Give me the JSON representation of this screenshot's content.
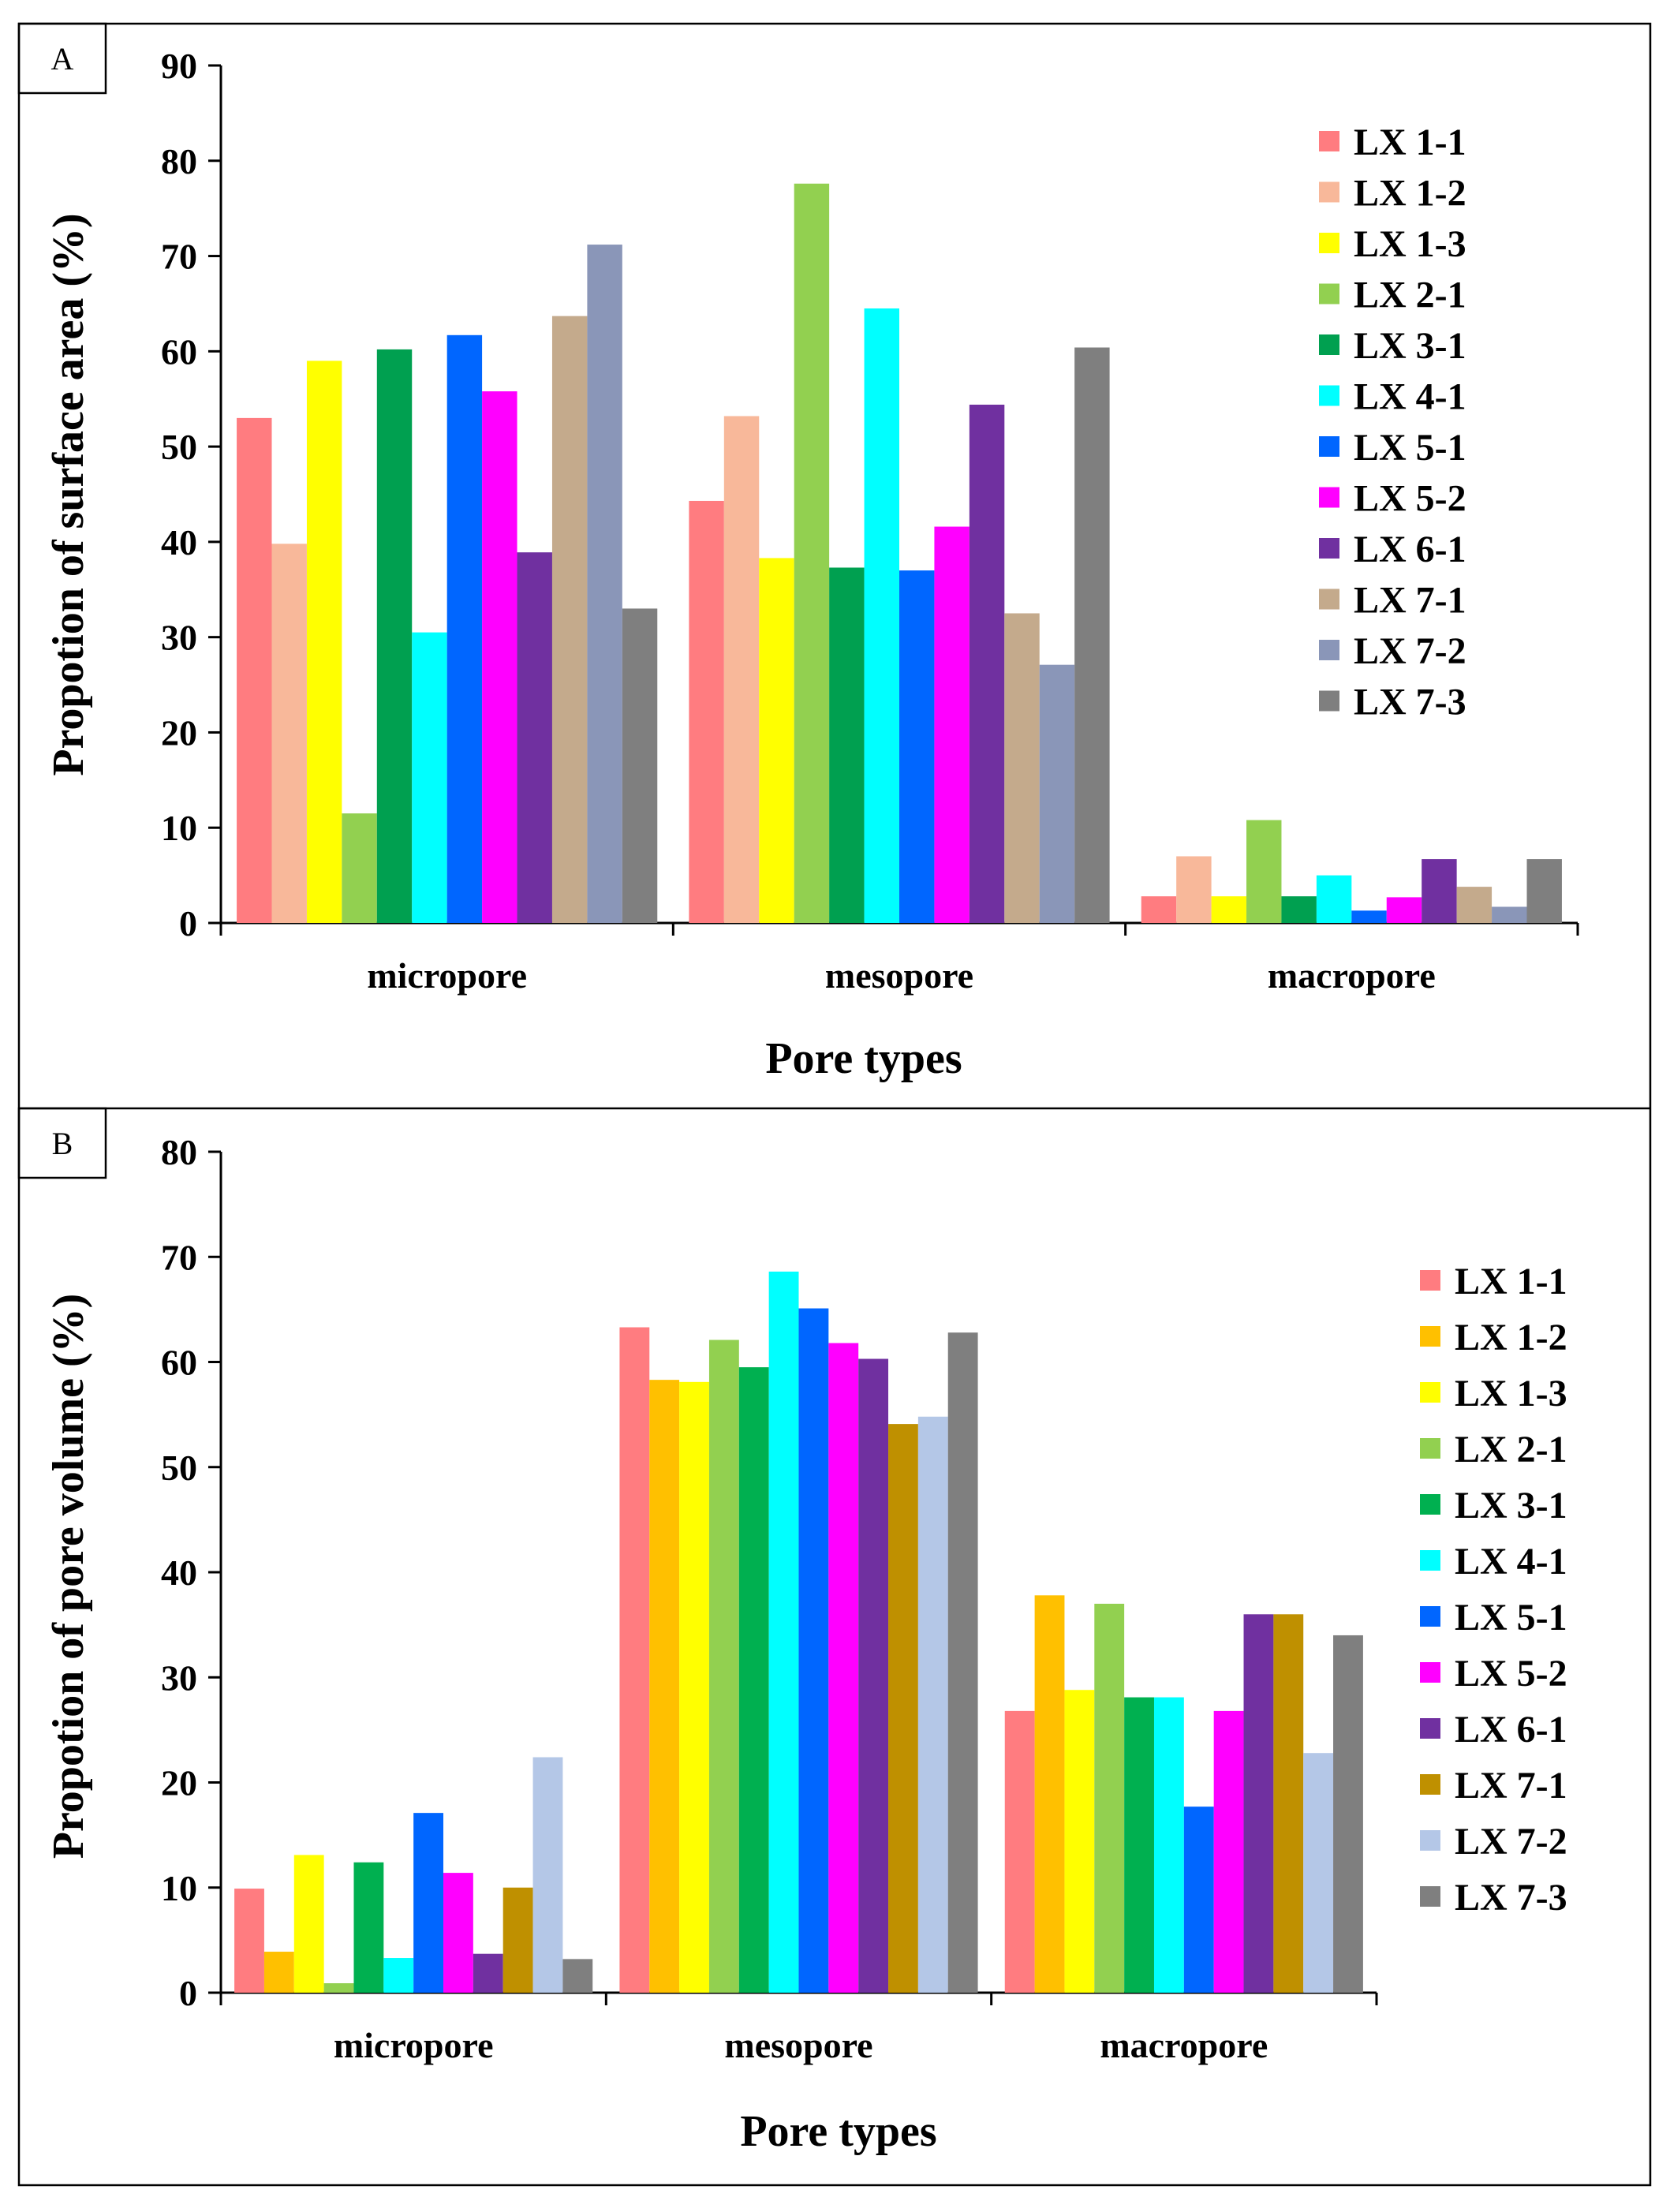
{
  "legend": {
    "a": {
      "labels": [
        "LX 1-1",
        "LX 1-2",
        "LX 1-3",
        "LX 2-1",
        "LX 3-1",
        "LX 4-1",
        "LX 5-1",
        "LX 5-2",
        "LX 6-1",
        "LX 7-1",
        "LX 7-2",
        "LX 7-3"
      ],
      "colors": [
        "#FF7C80",
        "#F8B89A",
        "#FFFF00",
        "#92D050",
        "#00A050",
        "#00FFFF",
        "#0066FF",
        "#FF00FF",
        "#7030A0",
        "#C4AA8C",
        "#8A96B8",
        "#7F7F7F"
      ]
    },
    "b": {
      "labels": [
        "LX 1-1",
        "LX 1-2",
        "LX 1-3",
        "LX 2-1",
        "LX 3-1",
        "LX 4-1",
        "LX 5-1",
        "LX 5-2",
        "LX 6-1",
        "LX 7-1",
        "LX 7-2",
        "LX 7-3"
      ],
      "colors": [
        "#FF7C80",
        "#FFC000",
        "#FFFF00",
        "#92D050",
        "#00B050",
        "#00FFFF",
        "#0066FF",
        "#FF00FF",
        "#7030A0",
        "#BF9000",
        "#B4C7E7",
        "#7F7F7F"
      ]
    }
  },
  "chart_data": [
    {
      "panel": "A",
      "type": "bar",
      "title": "",
      "xlabel": "Pore types",
      "ylabel": "Propotion of surface area (%)",
      "ylim": [
        0,
        90
      ],
      "yticks": [
        0,
        10,
        20,
        30,
        40,
        50,
        60,
        70,
        80,
        90
      ],
      "categories": [
        "micropore",
        "mesopore",
        "macropore"
      ],
      "legend_position": "top-right",
      "series": [
        {
          "name": "LX 1-1",
          "values": [
            53.0,
            44.3,
            2.8
          ]
        },
        {
          "name": "LX 1-2",
          "values": [
            39.8,
            53.2,
            7.0
          ]
        },
        {
          "name": "LX 1-3",
          "values": [
            59.0,
            38.3,
            2.8
          ]
        },
        {
          "name": "LX 2-1",
          "values": [
            11.5,
            77.6,
            10.8
          ]
        },
        {
          "name": "LX 3-1",
          "values": [
            60.2,
            37.3,
            2.8
          ]
        },
        {
          "name": "LX 4-1",
          "values": [
            30.5,
            64.5,
            5.0
          ]
        },
        {
          "name": "LX 5-1",
          "values": [
            61.7,
            37.0,
            1.3
          ]
        },
        {
          "name": "LX 5-2",
          "values": [
            55.8,
            41.6,
            2.7
          ]
        },
        {
          "name": "LX 6-1",
          "values": [
            38.9,
            54.4,
            6.7
          ]
        },
        {
          "name": "LX 7-1",
          "values": [
            63.7,
            32.5,
            3.8
          ]
        },
        {
          "name": "LX 7-2",
          "values": [
            71.2,
            27.1,
            1.7
          ]
        },
        {
          "name": "LX 7-3",
          "values": [
            33.0,
            60.4,
            6.7
          ]
        }
      ]
    },
    {
      "panel": "B",
      "type": "bar",
      "title": "",
      "xlabel": "Pore types",
      "ylabel": "Propotion of pore volume (%)",
      "ylim": [
        0,
        80
      ],
      "yticks": [
        0,
        10,
        20,
        30,
        40,
        50,
        60,
        70,
        80
      ],
      "categories": [
        "micropore",
        "mesopore",
        "macropore"
      ],
      "legend_position": "right",
      "series": [
        {
          "name": "LX 1-1",
          "values": [
            9.9,
            63.3,
            26.8
          ]
        },
        {
          "name": "LX 1-2",
          "values": [
            3.9,
            58.3,
            37.8
          ]
        },
        {
          "name": "LX 1-3",
          "values": [
            13.1,
            58.1,
            28.8
          ]
        },
        {
          "name": "LX 2-1",
          "values": [
            0.9,
            62.1,
            37.0
          ]
        },
        {
          "name": "LX 3-1",
          "values": [
            12.4,
            59.5,
            28.1
          ]
        },
        {
          "name": "LX 4-1",
          "values": [
            3.3,
            68.6,
            28.1
          ]
        },
        {
          "name": "LX 5-1",
          "values": [
            17.1,
            65.1,
            17.7
          ]
        },
        {
          "name": "LX 5-2",
          "values": [
            11.4,
            61.8,
            26.8
          ]
        },
        {
          "name": "LX 6-1",
          "values": [
            3.7,
            60.3,
            36.0
          ]
        },
        {
          "name": "LX 7-1",
          "values": [
            10.0,
            54.1,
            36.0
          ]
        },
        {
          "name": "LX 7-2",
          "values": [
            22.4,
            54.8,
            22.8
          ]
        },
        {
          "name": "LX 7-3",
          "values": [
            3.2,
            62.8,
            34.0
          ]
        }
      ]
    }
  ]
}
